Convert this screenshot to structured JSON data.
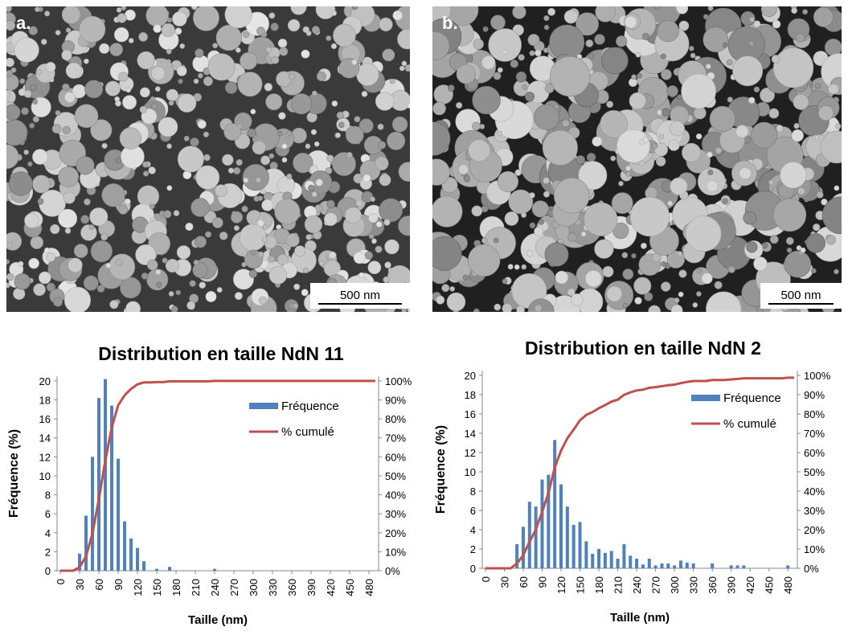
{
  "images": [
    {
      "label": "a.",
      "scale_bar": "500 nm"
    },
    {
      "label": "b.",
      "scale_bar": "500 nm"
    }
  ],
  "chart_data": [
    {
      "type": "combo",
      "title": "Distribution en taille NdN 11",
      "xlabel": "Taille (nm)",
      "ylabel": "Fréquence (%)",
      "x": [
        0,
        10,
        20,
        30,
        40,
        50,
        60,
        70,
        80,
        90,
        100,
        110,
        120,
        130,
        140,
        150,
        160,
        170,
        180,
        190,
        200,
        210,
        220,
        230,
        240,
        250,
        260,
        270,
        280,
        290,
        300,
        310,
        320,
        330,
        340,
        350,
        360,
        370,
        380,
        390,
        400,
        410,
        420,
        430,
        440,
        450,
        460,
        470,
        480,
        490
      ],
      "series": [
        {
          "name": "Fréquence",
          "kind": "bar",
          "color": "#4f81bd",
          "values": [
            0,
            0,
            0,
            1.8,
            5.8,
            12,
            18.2,
            20.2,
            17.4,
            11.8,
            5.2,
            3.4,
            2.4,
            1,
            0,
            0.2,
            0,
            0.4,
            0,
            0,
            0,
            0,
            0,
            0,
            0.2,
            0,
            0,
            0,
            0,
            0,
            0,
            0,
            0,
            0,
            0,
            0,
            0,
            0,
            0,
            0,
            0,
            0,
            0,
            0,
            0,
            0,
            0,
            0,
            0,
            0
          ]
        },
        {
          "name": "% cumulé",
          "kind": "line",
          "axis": "y2",
          "color": "#c0504d",
          "values": [
            0,
            0,
            0,
            1.8,
            7.6,
            19.6,
            37.8,
            58,
            75.4,
            87.2,
            92.4,
            95.8,
            98.2,
            99.2,
            99.2,
            99.4,
            99.4,
            99.8,
            99.8,
            99.8,
            99.8,
            99.8,
            99.8,
            99.8,
            100,
            100,
            100,
            100,
            100,
            100,
            100,
            100,
            100,
            100,
            100,
            100,
            100,
            100,
            100,
            100,
            100,
            100,
            100,
            100,
            100,
            100,
            100,
            100,
            100,
            100
          ]
        }
      ],
      "xlim": [
        -5,
        495
      ],
      "xticks": [
        0,
        30,
        60,
        90,
        120,
        150,
        180,
        210,
        240,
        270,
        300,
        330,
        360,
        390,
        420,
        450,
        480
      ],
      "ylim": [
        0,
        20.5
      ],
      "yticks": [
        0,
        2,
        4,
        6,
        8,
        10,
        12,
        14,
        16,
        18,
        20
      ],
      "y2lim": [
        0,
        102.5
      ],
      "y2ticks": [
        {
          "value": 0,
          "label": "0%"
        },
        {
          "value": 10,
          "label": "10%"
        },
        {
          "value": 20,
          "label": "20%"
        },
        {
          "value": 30,
          "label": "30%"
        },
        {
          "value": 40,
          "label": "40%"
        },
        {
          "value": 50,
          "label": "50%"
        },
        {
          "value": 60,
          "label": "60%"
        },
        {
          "value": 70,
          "label": "70%"
        },
        {
          "value": 80,
          "label": "80%"
        },
        {
          "value": 90,
          "label": "90%"
        },
        {
          "value": 100,
          "label": "100%"
        }
      ],
      "legend": "upper right"
    },
    {
      "type": "combo",
      "title": "Distribution en taille NdN 2",
      "xlabel": "Taille (nm)",
      "ylabel": "Fréquence (%)",
      "x": [
        0,
        10,
        20,
        30,
        40,
        50,
        60,
        70,
        80,
        90,
        100,
        110,
        120,
        130,
        140,
        150,
        160,
        170,
        180,
        190,
        200,
        210,
        220,
        230,
        240,
        250,
        260,
        270,
        280,
        290,
        300,
        310,
        320,
        330,
        340,
        350,
        360,
        370,
        380,
        390,
        400,
        410,
        420,
        430,
        440,
        450,
        460,
        470,
        480,
        490
      ],
      "series": [
        {
          "name": "Fréquence",
          "kind": "bar",
          "color": "#4f81bd",
          "values": [
            0,
            0,
            0,
            0,
            0,
            2.5,
            4.3,
            6.9,
            6.4,
            9.2,
            9.7,
            13.3,
            8.7,
            6.4,
            4.5,
            4.8,
            2.8,
            1.5,
            2,
            1.6,
            1.8,
            1,
            2.5,
            1.3,
            1,
            0.4,
            1,
            0.3,
            0.5,
            0.5,
            0.3,
            0.8,
            0.6,
            0.5,
            0,
            0,
            0.5,
            0,
            0,
            0.3,
            0.3,
            0.3,
            0,
            0,
            0,
            0,
            0,
            0,
            0.3,
            0
          ]
        },
        {
          "name": "% cumulé",
          "kind": "line",
          "axis": "y2",
          "color": "#c0504d",
          "values": [
            0,
            0,
            0,
            0,
            0,
            2.5,
            6.8,
            13.7,
            20.1,
            29.3,
            39,
            52.3,
            61,
            67.4,
            71.9,
            76.7,
            79.5,
            81,
            83,
            84.6,
            86.4,
            87.4,
            89.9,
            91.2,
            92.2,
            92.6,
            93.6,
            93.9,
            94.4,
            94.9,
            95.2,
            96,
            96.6,
            97.1,
            97.1,
            97.1,
            97.6,
            97.6,
            97.6,
            97.9,
            98.2,
            98.5,
            98.5,
            98.5,
            98.5,
            98.5,
            98.5,
            98.5,
            98.8,
            98.8
          ]
        }
      ],
      "xlim": [
        -5,
        495
      ],
      "xticks": [
        0,
        30,
        60,
        90,
        120,
        150,
        180,
        210,
        240,
        270,
        300,
        330,
        360,
        390,
        420,
        450,
        480
      ],
      "ylim": [
        0,
        20.5
      ],
      "yticks": [
        0,
        2,
        4,
        6,
        8,
        10,
        12,
        14,
        16,
        18,
        20
      ],
      "y2lim": [
        0,
        102.5
      ],
      "y2ticks": [
        {
          "value": 0,
          "label": "0%"
        },
        {
          "value": 10,
          "label": "10%"
        },
        {
          "value": 20,
          "label": "20%"
        },
        {
          "value": 30,
          "label": "30%"
        },
        {
          "value": 40,
          "label": "40%"
        },
        {
          "value": 50,
          "label": "50%"
        },
        {
          "value": 60,
          "label": "60%"
        },
        {
          "value": 70,
          "label": "70%"
        },
        {
          "value": 80,
          "label": "80%"
        },
        {
          "value": 90,
          "label": "90%"
        },
        {
          "value": 100,
          "label": "100%"
        }
      ],
      "legend": "upper right"
    }
  ]
}
